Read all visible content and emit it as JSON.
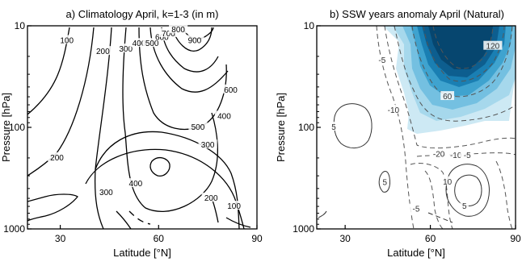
{
  "chart_data": [
    {
      "type": "contour",
      "title": "a) Climatology April, k=1-3 (in m)",
      "xlabel": "Latitude [°N]",
      "ylabel": "Pressure [hPa]",
      "xlim": [
        20,
        90
      ],
      "ylim": [
        1000,
        10
      ],
      "y_scale": "log",
      "x_ticks": [
        {
          "v": 30,
          "label": "30"
        },
        {
          "v": 60,
          "label": "60"
        },
        {
          "v": 90,
          "label": "90"
        }
      ],
      "y_ticks": [
        {
          "v": 10,
          "label": "10"
        },
        {
          "v": 100,
          "label": "100"
        },
        {
          "v": 1000,
          "label": "1000"
        }
      ],
      "contour_labels": [
        {
          "text": "100",
          "x": 32,
          "p": 14
        },
        {
          "text": "200",
          "x": 43,
          "p": 18
        },
        {
          "text": "300",
          "x": 50,
          "p": 17
        },
        {
          "text": "400",
          "x": 54,
          "p": 15
        },
        {
          "text": "500",
          "x": 58,
          "p": 15
        },
        {
          "text": "600",
          "x": 61,
          "p": 13
        },
        {
          "text": "700",
          "x": 63,
          "p": 12
        },
        {
          "text": "800",
          "x": 66,
          "p": 11
        },
        {
          "text": "900",
          "x": 71,
          "p": 14
        },
        {
          "text": "600",
          "x": 82,
          "p": 43
        },
        {
          "text": "400",
          "x": 80,
          "p": 78
        },
        {
          "text": "500",
          "x": 72,
          "p": 100
        },
        {
          "text": "300",
          "x": 75,
          "p": 150
        },
        {
          "text": "200",
          "x": 29,
          "p": 200
        },
        {
          "text": "400",
          "x": 53,
          "p": 360
        },
        {
          "text": "300",
          "x": 44,
          "p": 440
        },
        {
          "text": "200",
          "x": 76,
          "p": 500
        },
        {
          "text": "100",
          "x": 83,
          "p": 600
        }
      ]
    },
    {
      "type": "contour",
      "title": "b) SSW years anomaly April (Natural)",
      "xlabel": "Latitude [°N]",
      "ylabel": "Pressure [hPa]",
      "xlim": [
        20,
        90
      ],
      "ylim": [
        1000,
        10
      ],
      "y_scale": "log",
      "x_ticks": [
        {
          "v": 30,
          "label": "30"
        },
        {
          "v": 60,
          "label": "60"
        },
        {
          "v": 90,
          "label": "90"
        }
      ],
      "y_ticks": [
        {
          "v": 10,
          "label": "10"
        },
        {
          "v": 100,
          "label": "100"
        },
        {
          "v": 1000,
          "label": "1000"
        }
      ],
      "fill_colors": [
        "#cde9f4",
        "#a6d8ec",
        "#74c0e1",
        "#3fa3cf",
        "#1a7fb3",
        "#0d5e8f",
        "#06466f"
      ],
      "contour_labels": [
        {
          "text": "-5",
          "x": 43,
          "p": 22
        },
        {
          "text": "-10",
          "x": 47,
          "p": 68
        },
        {
          "text": "-20",
          "x": 63,
          "p": 185
        },
        {
          "text": "-10",
          "x": 69,
          "p": 190
        },
        {
          "text": "-5",
          "x": 73,
          "p": 190
        },
        {
          "text": "10",
          "x": 66,
          "p": 345
        },
        {
          "text": "5",
          "x": 72,
          "p": 600
        },
        {
          "text": "5",
          "x": 26,
          "p": 100
        },
        {
          "text": "5",
          "x": 44,
          "p": 350
        },
        {
          "text": "-5",
          "x": 55,
          "p": 640
        },
        {
          "text": "120",
          "x": 82,
          "p": 16
        },
        {
          "text": "60",
          "x": 66,
          "p": 50
        }
      ]
    }
  ]
}
